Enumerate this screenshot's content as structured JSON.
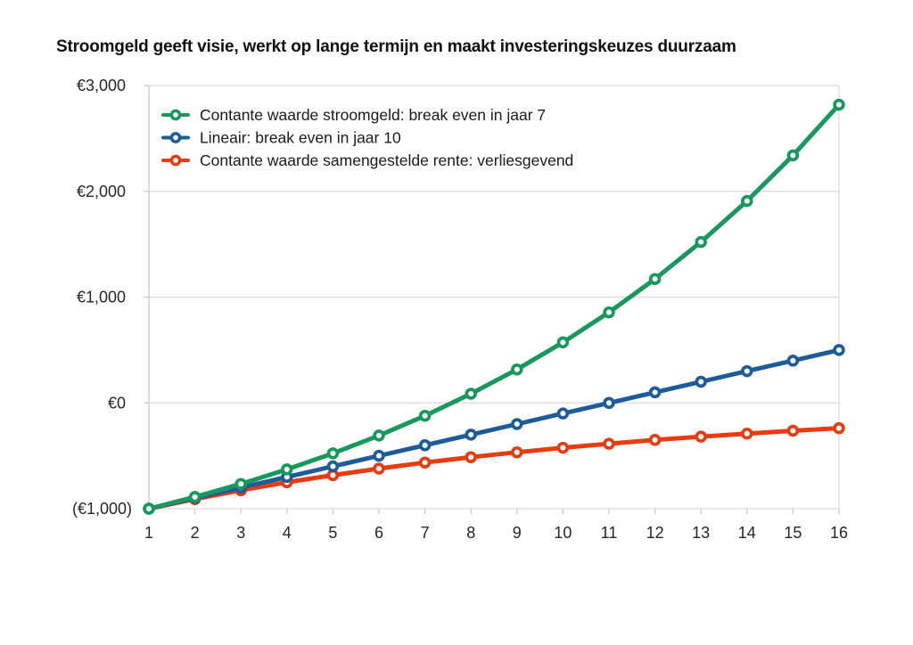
{
  "page": {
    "title": "Stroomgeld geeft visie, werkt op lange termijn en maakt investeringskeuzes duurzaam"
  },
  "chart_data": {
    "type": "line",
    "x": [
      1,
      2,
      3,
      4,
      5,
      6,
      7,
      8,
      9,
      10,
      11,
      12,
      13,
      14,
      15,
      16
    ],
    "x_tick_labels": [
      "1",
      "2",
      "3",
      "4",
      "5",
      "6",
      "7",
      "8",
      "9",
      "10",
      "11",
      "12",
      "13",
      "14",
      "15",
      "16"
    ],
    "y_ticks": [
      {
        "label": "€3,000",
        "value": 3000
      },
      {
        "label": "€2,000",
        "value": 2000
      },
      {
        "label": "€1,000",
        "value": 1000
      },
      {
        "label": "€0",
        "value": 0
      },
      {
        "label": "(€1,000)",
        "value": -1000
      }
    ],
    "ylim": [
      -1000,
      3000
    ],
    "grid": "horizontal-only",
    "legend_position": "top-left-inside",
    "marker": "open-circle",
    "series": [
      {
        "name": "Contante waarde stroomgeld: break even in jaar 7",
        "color": "#17985C",
        "values": [
          -1000,
          -889,
          -766,
          -629,
          -477,
          -309,
          -122,
          86,
          316,
          572,
          856,
          1171,
          1521,
          1909,
          2340,
          2819
        ]
      },
      {
        "name": "Lineair: break even in jaar 10",
        "color": "#1E5C99",
        "values": [
          -1000,
          -900,
          -800,
          -700,
          -600,
          -500,
          -400,
          -300,
          -200,
          -100,
          0,
          100,
          200,
          300,
          400,
          500
        ]
      },
      {
        "name": "Contante waarde samengestelde rente: verliesgevend",
        "color": "#E73B12",
        "values": [
          -1000,
          -909,
          -826,
          -751,
          -683,
          -621,
          -564,
          -513,
          -467,
          -424,
          -386,
          -350,
          -319,
          -290,
          -263,
          -239
        ]
      }
    ]
  },
  "colors": {
    "background": "#FFFFFF",
    "gridline": "#D9D9D9",
    "axis_line": "#C6C6C6",
    "tick_mark": "#C6C6C6",
    "tick_label": "#262626",
    "legend_text": "#1A1A1A",
    "title_text": "#111111"
  }
}
